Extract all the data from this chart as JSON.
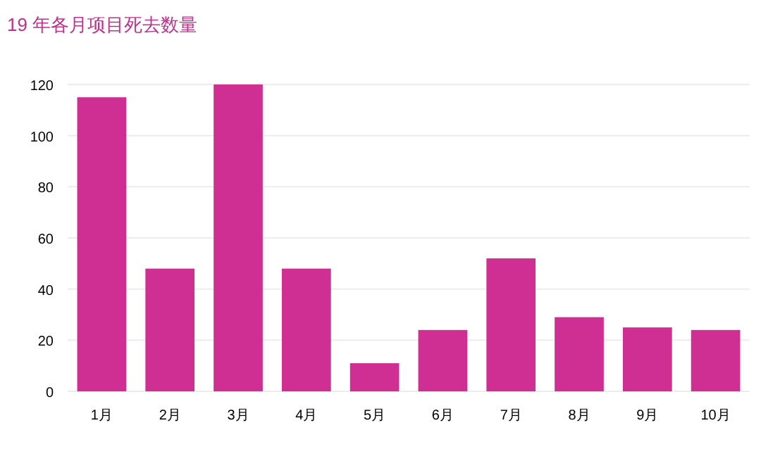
{
  "chart_data": {
    "type": "bar",
    "title": "19 年各月项目死去数量",
    "categories": [
      "1月",
      "2月",
      "3月",
      "4月",
      "5月",
      "6月",
      "7月",
      "8月",
      "9月",
      "10月"
    ],
    "values": [
      115,
      48,
      120,
      48,
      11,
      24,
      52,
      29,
      25,
      24
    ],
    "color": "#cf2f92",
    "ylim": [
      0,
      120
    ],
    "yticks": [
      0,
      20,
      40,
      60,
      80,
      100,
      120
    ],
    "grid": "y"
  }
}
